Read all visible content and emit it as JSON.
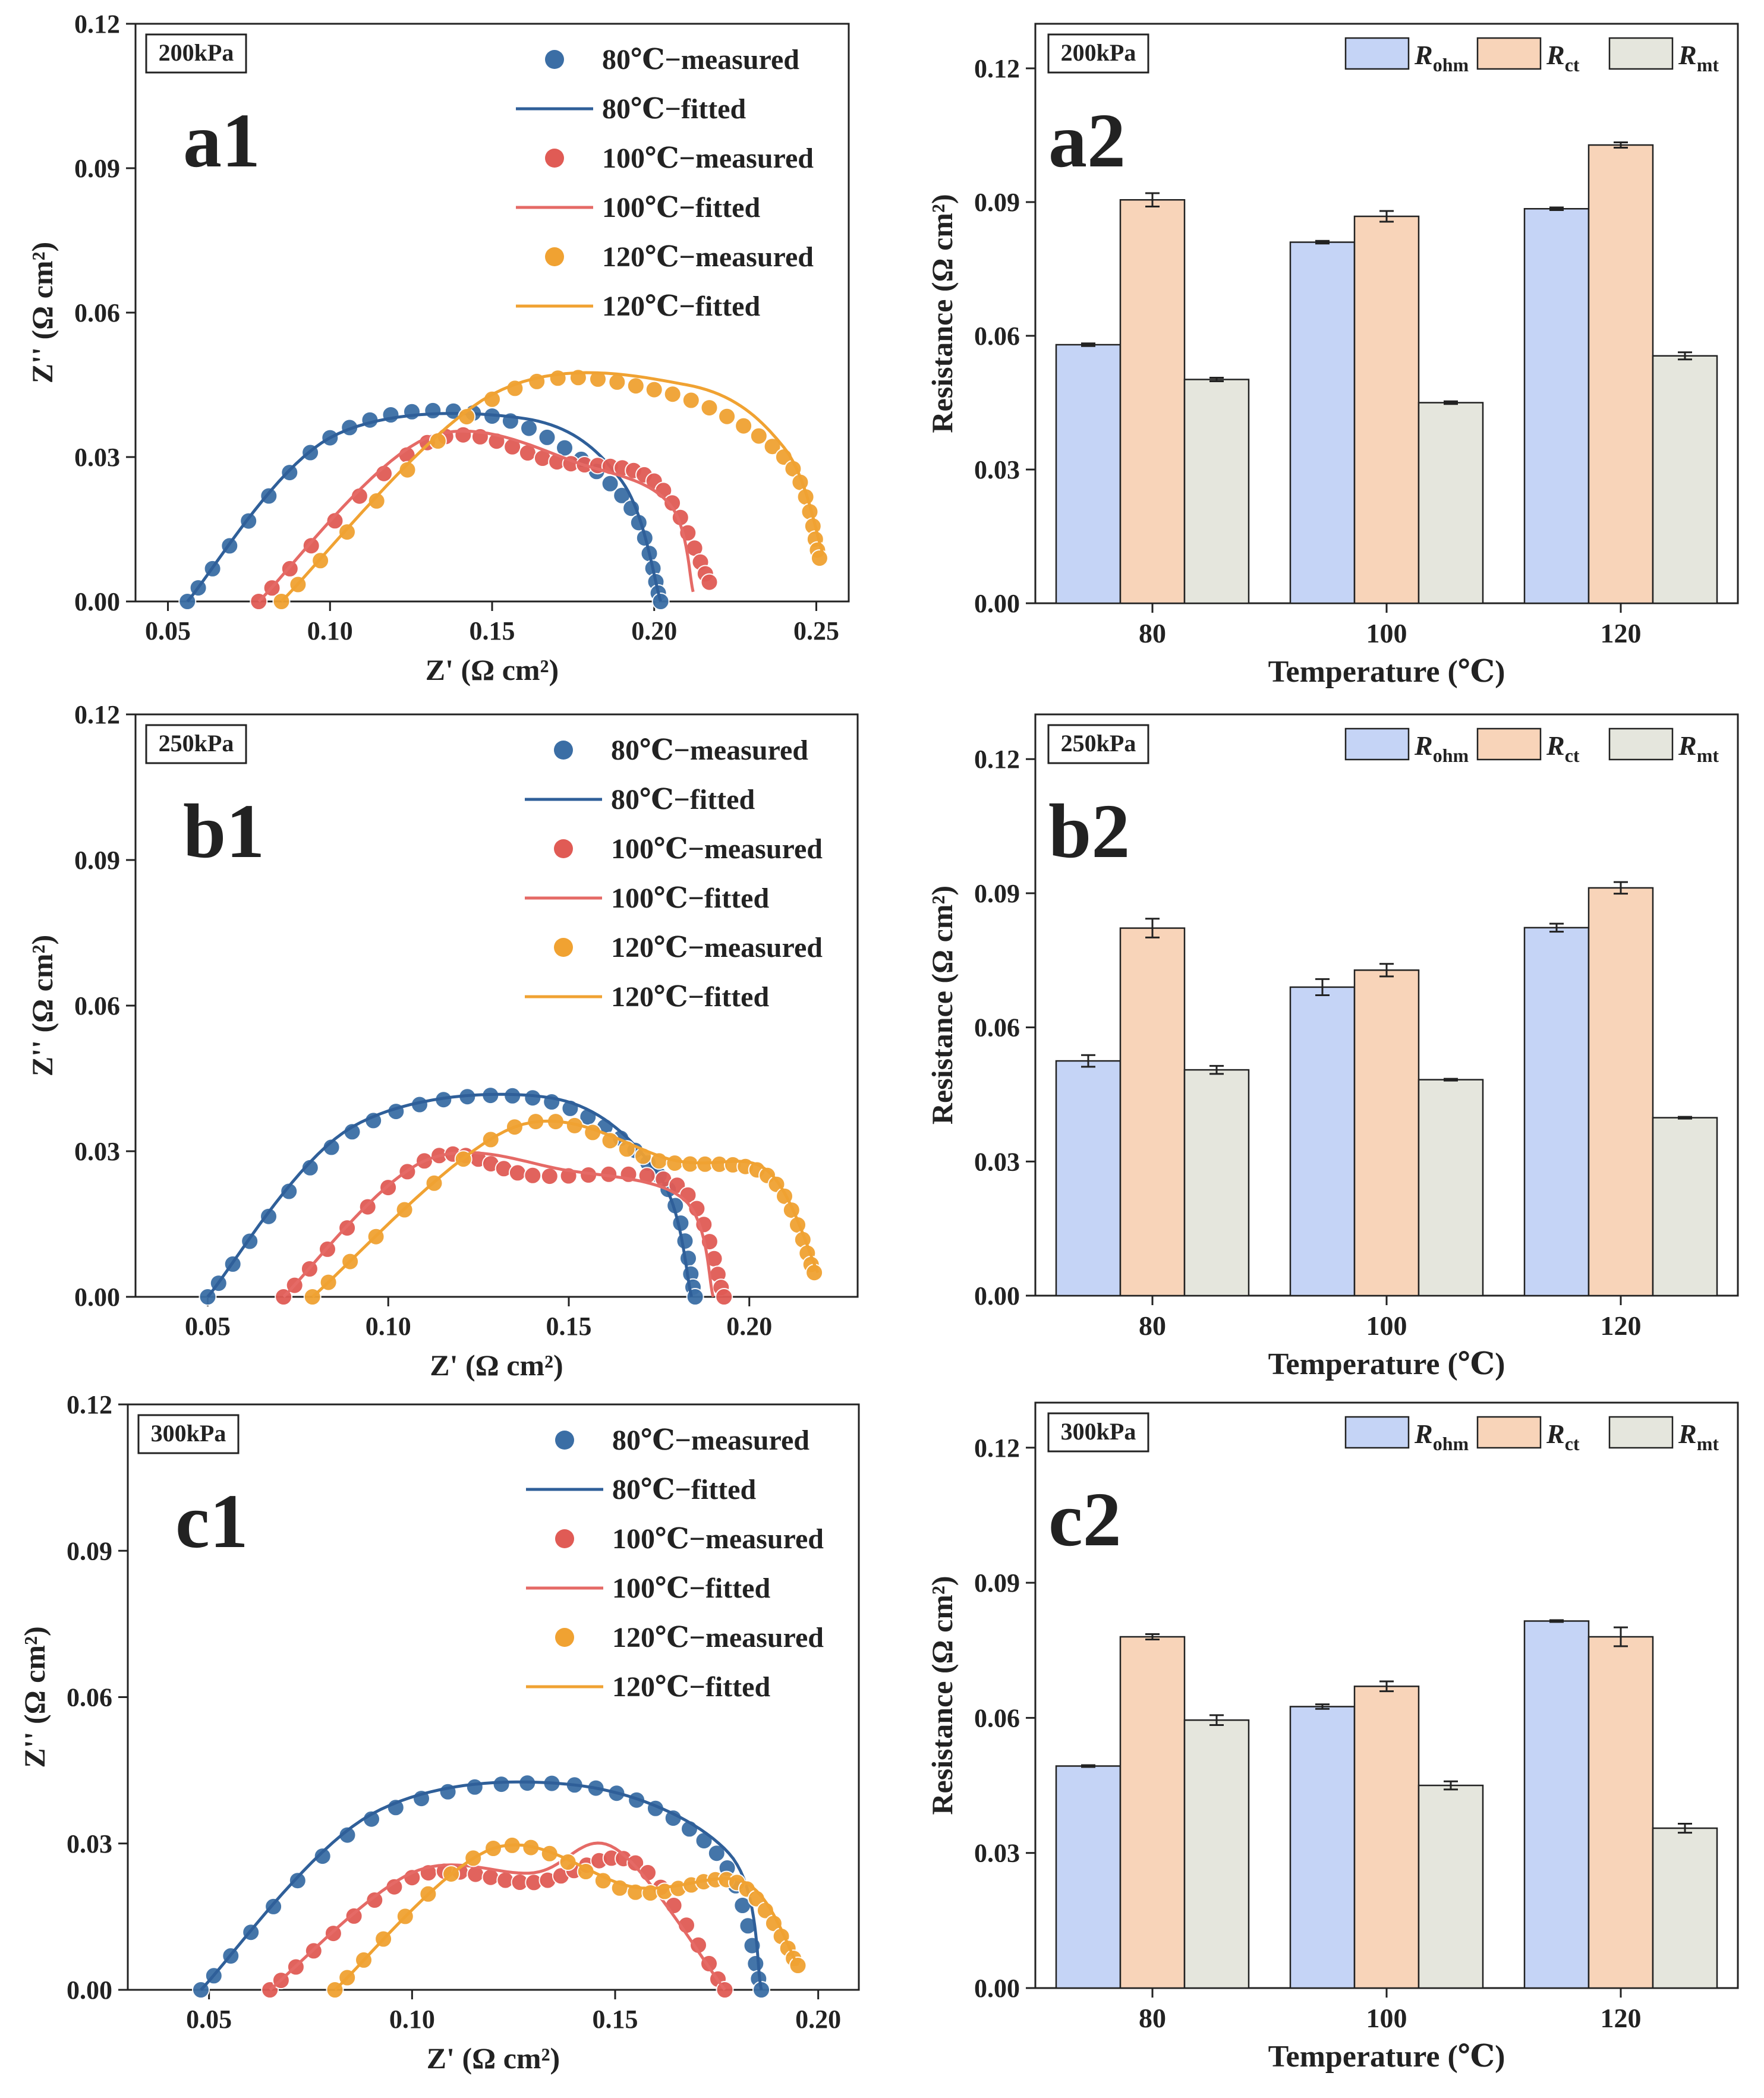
{
  "chart_data": [
    {
      "id": "a1",
      "type": "scatter",
      "panel_label": "a1",
      "pressure": "200kPa",
      "xlabel": "Z' (Ω cm²)",
      "ylabel": "Z'' (Ω cm²)",
      "xlim": [
        0.04,
        0.26
      ],
      "ylim": [
        0,
        0.12
      ],
      "xticks": [
        0.05,
        0.1,
        0.15,
        0.2,
        0.25
      ],
      "xtick_labels": [
        "0.05",
        "0.10",
        "0.15",
        "0.20",
        "0.25"
      ],
      "yticks": [
        0,
        0.03,
        0.06,
        0.09,
        0.12
      ],
      "ytick_labels": [
        "0.00",
        "0.03",
        "0.06",
        "0.09",
        "0.12"
      ],
      "legend_position": "top-right",
      "series": [
        {
          "name": "80℃−measured",
          "color": "#3b6ea5",
          "kind": "points",
          "arc": [
            [
              0.056,
              0.0
            ],
            [
              0.1,
              0.034
            ],
            [
              0.15,
              0.0385
            ],
            [
              0.19,
              0.022
            ],
            [
              0.202,
              0.0
            ]
          ]
        },
        {
          "name": "80℃−fitted",
          "color": "#2f5f99",
          "kind": "line",
          "arc": [
            [
              0.056,
              0.0
            ],
            [
              0.1,
              0.034
            ],
            [
              0.16,
              0.038
            ],
            [
              0.19,
              0.025
            ],
            [
              0.202,
              0.0
            ]
          ]
        },
        {
          "name": "100℃−measured",
          "color": "#e05b55",
          "kind": "points",
          "arc": [
            [
              0.078,
              0.0
            ],
            [
              0.13,
              0.033
            ],
            [
              0.17,
              0.029
            ],
            [
              0.2,
              0.025
            ],
            [
              0.217,
              0.004
            ]
          ]
        },
        {
          "name": "100℃−fitted",
          "color": "#e56a66",
          "kind": "line",
          "arc": [
            [
              0.078,
              0.0
            ],
            [
              0.13,
              0.034
            ],
            [
              0.18,
              0.028
            ],
            [
              0.205,
              0.02
            ],
            [
              0.212,
              0.002
            ]
          ]
        },
        {
          "name": "120℃−measured",
          "color": "#f0a232",
          "kind": "points",
          "arc": [
            [
              0.085,
              0.0
            ],
            [
              0.15,
              0.042
            ],
            [
              0.2,
              0.044
            ],
            [
              0.24,
              0.03
            ],
            [
              0.251,
              0.009
            ]
          ]
        },
        {
          "name": "120℃−fitted",
          "color": "#f0a232",
          "kind": "line",
          "arc": [
            [
              0.085,
              0.0
            ],
            [
              0.15,
              0.043
            ],
            [
              0.21,
              0.045
            ],
            [
              0.24,
              0.032
            ],
            [
              0.252,
              0.01
            ]
          ]
        }
      ]
    },
    {
      "id": "a2",
      "type": "bar",
      "panel_label": "a2",
      "pressure": "200kPa",
      "xlabel": "Temperature (℃)",
      "ylabel": "Resistance (Ω cm²)",
      "categories": [
        "80",
        "100",
        "120"
      ],
      "ylim": [
        0,
        0.13
      ],
      "yticks": [
        0,
        0.03,
        0.06,
        0.09,
        0.12
      ],
      "ytick_labels": [
        "0.00",
        "0.03",
        "0.06",
        "0.09",
        "0.12"
      ],
      "legend_position": "top-right",
      "series": [
        {
          "name": "Rohm",
          "label_main": "R",
          "label_sub": "ohm",
          "color": "#c5d4f6",
          "values": [
            0.058,
            0.081,
            0.0885
          ],
          "errors": [
            0.0003,
            0.0003,
            0.0003
          ]
        },
        {
          "name": "Rct",
          "label_main": "R",
          "label_sub": "ct",
          "color": "#f8d4b9",
          "values": [
            0.0905,
            0.0868,
            0.1028
          ],
          "errors": [
            0.0015,
            0.0012,
            0.0006
          ]
        },
        {
          "name": "Rmt",
          "label_main": "R",
          "label_sub": "mt",
          "color": "#e5e6dd",
          "values": [
            0.0502,
            0.045,
            0.0555
          ],
          "errors": [
            0.0004,
            0.0003,
            0.0008
          ]
        }
      ]
    },
    {
      "id": "b1",
      "type": "scatter",
      "panel_label": "b1",
      "pressure": "250kPa",
      "xlabel": "Z' (Ω cm²)",
      "ylabel": "Z'' (Ω cm²)",
      "xlim": [
        0.03,
        0.23
      ],
      "ylim": [
        0,
        0.12
      ],
      "xticks": [
        0.05,
        0.1,
        0.15,
        0.2
      ],
      "xtick_labels": [
        "0.05",
        "0.10",
        "0.15",
        "0.20"
      ],
      "yticks": [
        0,
        0.03,
        0.06,
        0.09,
        0.12
      ],
      "ytick_labels": [
        "0.00",
        "0.03",
        "0.06",
        "0.09",
        "0.12"
      ],
      "legend_position": "top-right",
      "series": [
        {
          "name": "80℃−measured",
          "color": "#3b6ea5",
          "kind": "points",
          "arc": [
            [
              0.05,
              0.0
            ],
            [
              0.09,
              0.034
            ],
            [
              0.14,
              0.041
            ],
            [
              0.175,
              0.025
            ],
            [
              0.185,
              0.0
            ]
          ]
        },
        {
          "name": "80℃−fitted",
          "color": "#2f5f99",
          "kind": "line",
          "arc": [
            [
              0.05,
              0.0
            ],
            [
              0.09,
              0.035
            ],
            [
              0.145,
              0.041
            ],
            [
              0.175,
              0.025
            ],
            [
              0.184,
              0.0
            ]
          ]
        },
        {
          "name": "100℃−measured",
          "color": "#e05b55",
          "kind": "points",
          "arc": [
            [
              0.071,
              0.0
            ],
            [
              0.11,
              0.028
            ],
            [
              0.14,
              0.025
            ],
            [
              0.18,
              0.023
            ],
            [
              0.193,
              0.0
            ]
          ]
        },
        {
          "name": "100℃−fitted",
          "color": "#e56a66",
          "kind": "line",
          "arc": [
            [
              0.071,
              0.0
            ],
            [
              0.11,
              0.028
            ],
            [
              0.15,
              0.026
            ],
            [
              0.182,
              0.02
            ],
            [
              0.19,
              0.0
            ]
          ]
        },
        {
          "name": "120℃−measured",
          "color": "#f0a232",
          "kind": "points",
          "arc": [
            [
              0.079,
              0.0
            ],
            [
              0.135,
              0.035
            ],
            [
              0.175,
              0.028
            ],
            [
              0.205,
              0.025
            ],
            [
              0.218,
              0.005
            ]
          ]
        },
        {
          "name": "120℃−fitted",
          "color": "#f0a232",
          "kind": "line",
          "arc": [
            [
              0.079,
              0.0
            ],
            [
              0.135,
              0.035
            ],
            [
              0.18,
              0.028
            ],
            [
              0.205,
              0.026
            ],
            [
              0.219,
              0.005
            ]
          ]
        }
      ]
    },
    {
      "id": "b2",
      "type": "bar",
      "panel_label": "b2",
      "pressure": "250kPa",
      "xlabel": "Temperature (℃)",
      "ylabel": "Resistance (Ω cm²)",
      "categories": [
        "80",
        "100",
        "120"
      ],
      "ylim": [
        0,
        0.13
      ],
      "yticks": [
        0,
        0.03,
        0.06,
        0.09,
        0.12
      ],
      "ytick_labels": [
        "0.00",
        "0.03",
        "0.06",
        "0.09",
        "0.12"
      ],
      "legend_position": "top-right",
      "series": [
        {
          "name": "Rohm",
          "label_main": "R",
          "label_sub": "ohm",
          "color": "#c5d4f6",
          "values": [
            0.0525,
            0.069,
            0.0823
          ],
          "errors": [
            0.0013,
            0.0018,
            0.0009
          ]
        },
        {
          "name": "Rct",
          "label_main": "R",
          "label_sub": "ct",
          "color": "#f8d4b9",
          "values": [
            0.0822,
            0.0728,
            0.0912
          ],
          "errors": [
            0.0021,
            0.0014,
            0.0013
          ]
        },
        {
          "name": "Rmt",
          "label_main": "R",
          "label_sub": "mt",
          "color": "#e5e6dd",
          "values": [
            0.0505,
            0.0483,
            0.0398
          ],
          "errors": [
            0.0009,
            0.0002,
            0.0002
          ]
        }
      ]
    },
    {
      "id": "c1",
      "type": "scatter",
      "panel_label": "c1",
      "pressure": "300kPa",
      "xlabel": "Z' (Ω cm²)",
      "ylabel": "Z'' (Ω cm²)",
      "xlim": [
        0.03,
        0.21
      ],
      "ylim": [
        0,
        0.12
      ],
      "xticks": [
        0.05,
        0.1,
        0.15,
        0.2
      ],
      "xtick_labels": [
        "0.05",
        "0.10",
        "0.15",
        "0.20"
      ],
      "yticks": [
        0,
        0.03,
        0.06,
        0.09,
        0.12
      ],
      "ytick_labels": [
        "0.00",
        "0.03",
        "0.06",
        "0.09",
        "0.12"
      ],
      "legend_position": "top-right",
      "series": [
        {
          "name": "80℃−measured",
          "color": "#3b6ea5",
          "kind": "points",
          "arc": [
            [
              0.048,
              0.0
            ],
            [
              0.09,
              0.035
            ],
            [
              0.14,
              0.042
            ],
            [
              0.175,
              0.028
            ],
            [
              0.186,
              0.0
            ]
          ]
        },
        {
          "name": "80℃−fitted",
          "color": "#2f5f99",
          "kind": "line",
          "arc": [
            [
              0.048,
              0.0
            ],
            [
              0.09,
              0.036
            ],
            [
              0.14,
              0.042
            ],
            [
              0.178,
              0.028
            ],
            [
              0.186,
              0.0
            ]
          ]
        },
        {
          "name": "100℃−measured",
          "color": "#e05b55",
          "kind": "points",
          "arc": [
            [
              0.065,
              0.0
            ],
            [
              0.1,
              0.023
            ],
            [
              0.13,
              0.022
            ],
            [
              0.155,
              0.026
            ],
            [
              0.177,
              0.0
            ]
          ]
        },
        {
          "name": "100℃−fitted",
          "color": "#e56a66",
          "kind": "line",
          "arc": [
            [
              0.065,
              0.0
            ],
            [
              0.1,
              0.024
            ],
            [
              0.13,
              0.024
            ],
            [
              0.15,
              0.029
            ],
            [
              0.177,
              0.0
            ]
          ]
        },
        {
          "name": "120℃−measured",
          "color": "#f0a232",
          "kind": "points",
          "arc": [
            [
              0.081,
              0.0
            ],
            [
              0.12,
              0.029
            ],
            [
              0.155,
              0.02
            ],
            [
              0.18,
              0.022
            ],
            [
              0.195,
              0.005
            ]
          ]
        },
        {
          "name": "120℃−fitted",
          "color": "#f0a232",
          "kind": "line",
          "arc": [
            [
              0.081,
              0.0
            ],
            [
              0.12,
              0.029
            ],
            [
              0.155,
              0.021
            ],
            [
              0.182,
              0.022
            ],
            [
              0.195,
              0.005
            ]
          ]
        }
      ]
    },
    {
      "id": "c2",
      "type": "bar",
      "panel_label": "c2",
      "pressure": "300kPa",
      "xlabel": "Temperature (℃)",
      "ylabel": "Resistance (Ω cm²)",
      "categories": [
        "80",
        "100",
        "120"
      ],
      "ylim": [
        0,
        0.13
      ],
      "yticks": [
        0,
        0.03,
        0.06,
        0.09,
        0.12
      ],
      "ytick_labels": [
        "0.00",
        "0.03",
        "0.06",
        "0.09",
        "0.12"
      ],
      "legend_position": "top-right",
      "series": [
        {
          "name": "Rohm",
          "label_main": "R",
          "label_sub": "ohm",
          "color": "#c5d4f6",
          "values": [
            0.0493,
            0.0625,
            0.0815
          ],
          "errors": [
            0.0002,
            0.0005,
            0.0002
          ]
        },
        {
          "name": "Rct",
          "label_main": "R",
          "label_sub": "ct",
          "color": "#f8d4b9",
          "values": [
            0.078,
            0.067,
            0.078
          ],
          "errors": [
            0.0006,
            0.0011,
            0.0021
          ]
        },
        {
          "name": "Rmt",
          "label_main": "R",
          "label_sub": "mt",
          "color": "#e5e6dd",
          "values": [
            0.0595,
            0.045,
            0.0355
          ],
          "errors": [
            0.0011,
            0.0009,
            0.001
          ]
        }
      ]
    }
  ]
}
